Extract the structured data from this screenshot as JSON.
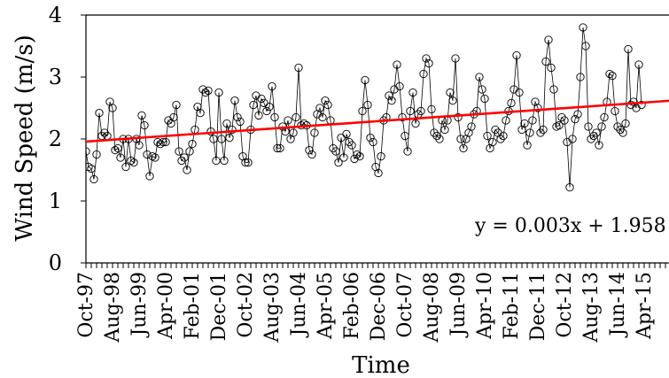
{
  "chart_data": {
    "type": "scatter",
    "title": "",
    "xlabel": "Time",
    "ylabel": "Wind Speed (m/s)",
    "ylim": [
      0,
      4
    ],
    "yticks": [
      0,
      1,
      2,
      3,
      4
    ],
    "start_label": "Oct-97",
    "x_tick_labels": [
      "Oct-97",
      "Aug-98",
      "Jun-99",
      "Apr-00",
      "Feb-01",
      "Dec-01",
      "Oct-02",
      "Aug-03",
      "Jun-04",
      "Apr-05",
      "Feb-06",
      "Dec-06",
      "Oct-07",
      "Aug-08",
      "Jun-09",
      "Apr-10",
      "Feb-11",
      "Dec-11",
      "Oct-12",
      "Aug-13",
      "Jun-14",
      "Apr-15"
    ],
    "series": [
      {
        "name": "",
        "type": "line-markers",
        "color": "#000000",
        "values": [
          1.8,
          1.55,
          1.52,
          1.35,
          1.75,
          2.42,
          2.05,
          2.1,
          2.05,
          2.6,
          2.5,
          1.82,
          1.85,
          1.7,
          2.0,
          1.55,
          2.0,
          1.65,
          1.62,
          2.0,
          1.9,
          2.38,
          2.22,
          1.75,
          1.4,
          1.72,
          1.7,
          1.95,
          1.92,
          1.95,
          1.95,
          2.3,
          2.25,
          2.35,
          2.55,
          1.8,
          1.65,
          1.7,
          1.5,
          1.8,
          1.92,
          2.15,
          2.52,
          2.42,
          2.8,
          2.75,
          2.78,
          2.12,
          2.0,
          1.65,
          2.75,
          2.0,
          1.65,
          2.25,
          2.02,
          2.15,
          2.62,
          2.35,
          2.28,
          1.72,
          1.62,
          1.62,
          2.15,
          2.55,
          2.7,
          2.38,
          2.65,
          2.58,
          2.45,
          2.52,
          2.85,
          2.35,
          1.85,
          1.85,
          2.2,
          2.12,
          2.3,
          2.0,
          2.1,
          2.35,
          3.15,
          2.22,
          2.25,
          2.22,
          1.82,
          1.75,
          2.1,
          2.4,
          2.5,
          2.35,
          2.62,
          2.55,
          2.3,
          1.85,
          1.8,
          1.62,
          2.02,
          1.7,
          2.08,
          1.95,
          1.9,
          1.68,
          1.75,
          1.72,
          2.45,
          2.95,
          2.55,
          2.02,
          1.95,
          1.55,
          1.45,
          1.72,
          2.3,
          2.35,
          2.7,
          2.62,
          2.8,
          3.2,
          2.85,
          2.35,
          2.05,
          1.8,
          2.45,
          2.75,
          2.25,
          2.4,
          2.45,
          3.05,
          3.3,
          3.22,
          2.48,
          2.1,
          2.05,
          2.0,
          2.3,
          2.15,
          2.3,
          2.75,
          2.62,
          3.3,
          2.35,
          2.0,
          1.85,
          2.0,
          2.1,
          2.2,
          2.4,
          2.45,
          3.0,
          2.8,
          2.65,
          2.05,
          1.85,
          1.95,
          2.15,
          2.1,
          2.0,
          2.05,
          2.3,
          2.45,
          2.58,
          2.8,
          3.35,
          2.75,
          2.15,
          2.25,
          1.9,
          2.1,
          2.3,
          2.6,
          2.5,
          2.1,
          2.15,
          3.25,
          3.6,
          3.15,
          2.8,
          2.2,
          2.22,
          2.35,
          2.3,
          1.95,
          1.22,
          2.0,
          2.32,
          2.4,
          3.0,
          3.8,
          3.5,
          2.2,
          2.0,
          2.05,
          2.1,
          1.9,
          2.2,
          2.35,
          2.6,
          3.05,
          3.02,
          2.45,
          2.2,
          2.15,
          2.1,
          2.25,
          3.45,
          2.55,
          2.6,
          2.5,
          3.2,
          2.55
        ]
      },
      {
        "name": "",
        "type": "trendline",
        "color": "#ff0000",
        "slope": 0.003,
        "intercept": 1.958
      }
    ],
    "annotation": "y = 0.003x + 1.958",
    "grid": false,
    "legend": "none"
  }
}
